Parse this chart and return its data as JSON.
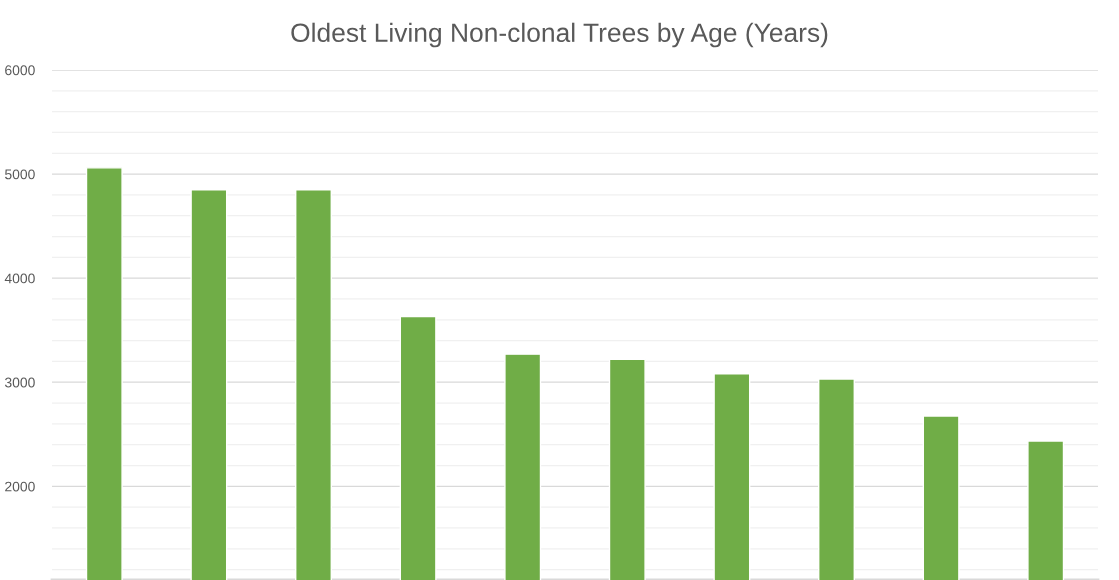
{
  "chart_data": {
    "type": "bar",
    "title": "Oldest Living Non-clonal Trees by Age (Years)",
    "categories": [
      null,
      null,
      null,
      null,
      null,
      null,
      null,
      null,
      null,
      null
    ],
    "values": [
      5060,
      4850,
      4850,
      3630,
      3270,
      3220,
      3080,
      3030,
      2675,
      2435
    ],
    "color": "#70ad47",
    "ylim": [
      1100,
      6000
    ],
    "yticks": [
      {
        "value": 1200,
        "label": null
      },
      {
        "value": 1400,
        "label": null
      },
      {
        "value": 1600,
        "label": null
      },
      {
        "value": 1800,
        "label": null
      },
      2000,
      {
        "value": 2200,
        "label": null
      },
      {
        "value": 2400,
        "label": null
      },
      {
        "value": 2600,
        "label": null
      },
      {
        "value": 2800,
        "label": null
      },
      3000,
      {
        "value": 3200,
        "label": null
      },
      {
        "value": 3400,
        "label": null
      },
      {
        "value": 3600,
        "label": null
      },
      {
        "value": 3800,
        "label": null
      },
      4000,
      {
        "value": 4200,
        "label": null
      },
      {
        "value": 4400,
        "label": null
      },
      {
        "value": 4600,
        "label": null
      },
      {
        "value": 4800,
        "label": null
      },
      5000,
      {
        "value": 5200,
        "label": null
      },
      {
        "value": 5400,
        "label": null
      },
      {
        "value": 5600,
        "label": null
      },
      {
        "value": 5800,
        "label": null
      },
      6000
    ],
    "grid": "y"
  }
}
